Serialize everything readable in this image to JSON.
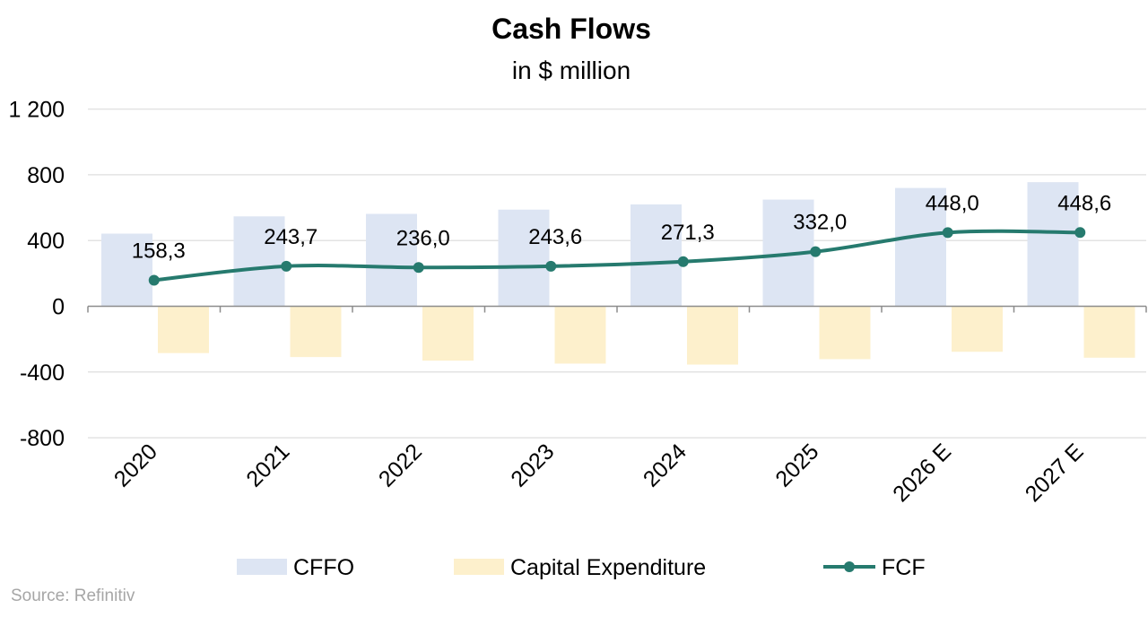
{
  "chart_data": {
    "type": "bar+line",
    "title": "Cash Flows",
    "subtitle": "in $ million",
    "categories": [
      "2020",
      "2021",
      "2022",
      "2023",
      "2024",
      "2025",
      "2026 E",
      "2027 E"
    ],
    "series": [
      {
        "name": "CFFO",
        "type": "bar",
        "color": "#dde5f3",
        "values": [
          442,
          547,
          562,
          588,
          620,
          649,
          720,
          755
        ]
      },
      {
        "name": "Capital Expenditure",
        "type": "bar",
        "color": "#fdf0cc",
        "values": [
          -285,
          -309,
          -331,
          -349,
          -355,
          -322,
          -277,
          -313
        ]
      },
      {
        "name": "FCF",
        "type": "line",
        "color": "#267a6e",
        "values": [
          158.3,
          243.7,
          236.0,
          243.6,
          271.3,
          332.0,
          448.0,
          448.6
        ],
        "labels": [
          "158,3",
          "243,7",
          "236,0",
          "243,6",
          "271,3",
          "332,0",
          "448,0",
          "448,6"
        ]
      }
    ],
    "ylim": [
      -800,
      1200
    ],
    "yticks": [
      1200,
      800,
      400,
      0,
      -400,
      -800
    ],
    "ytick_labels": [
      "1 200",
      "800",
      "400",
      "0",
      "-400",
      "-800"
    ],
    "grid": true,
    "legend": "bottom",
    "source": "Source: Refinitiv"
  }
}
